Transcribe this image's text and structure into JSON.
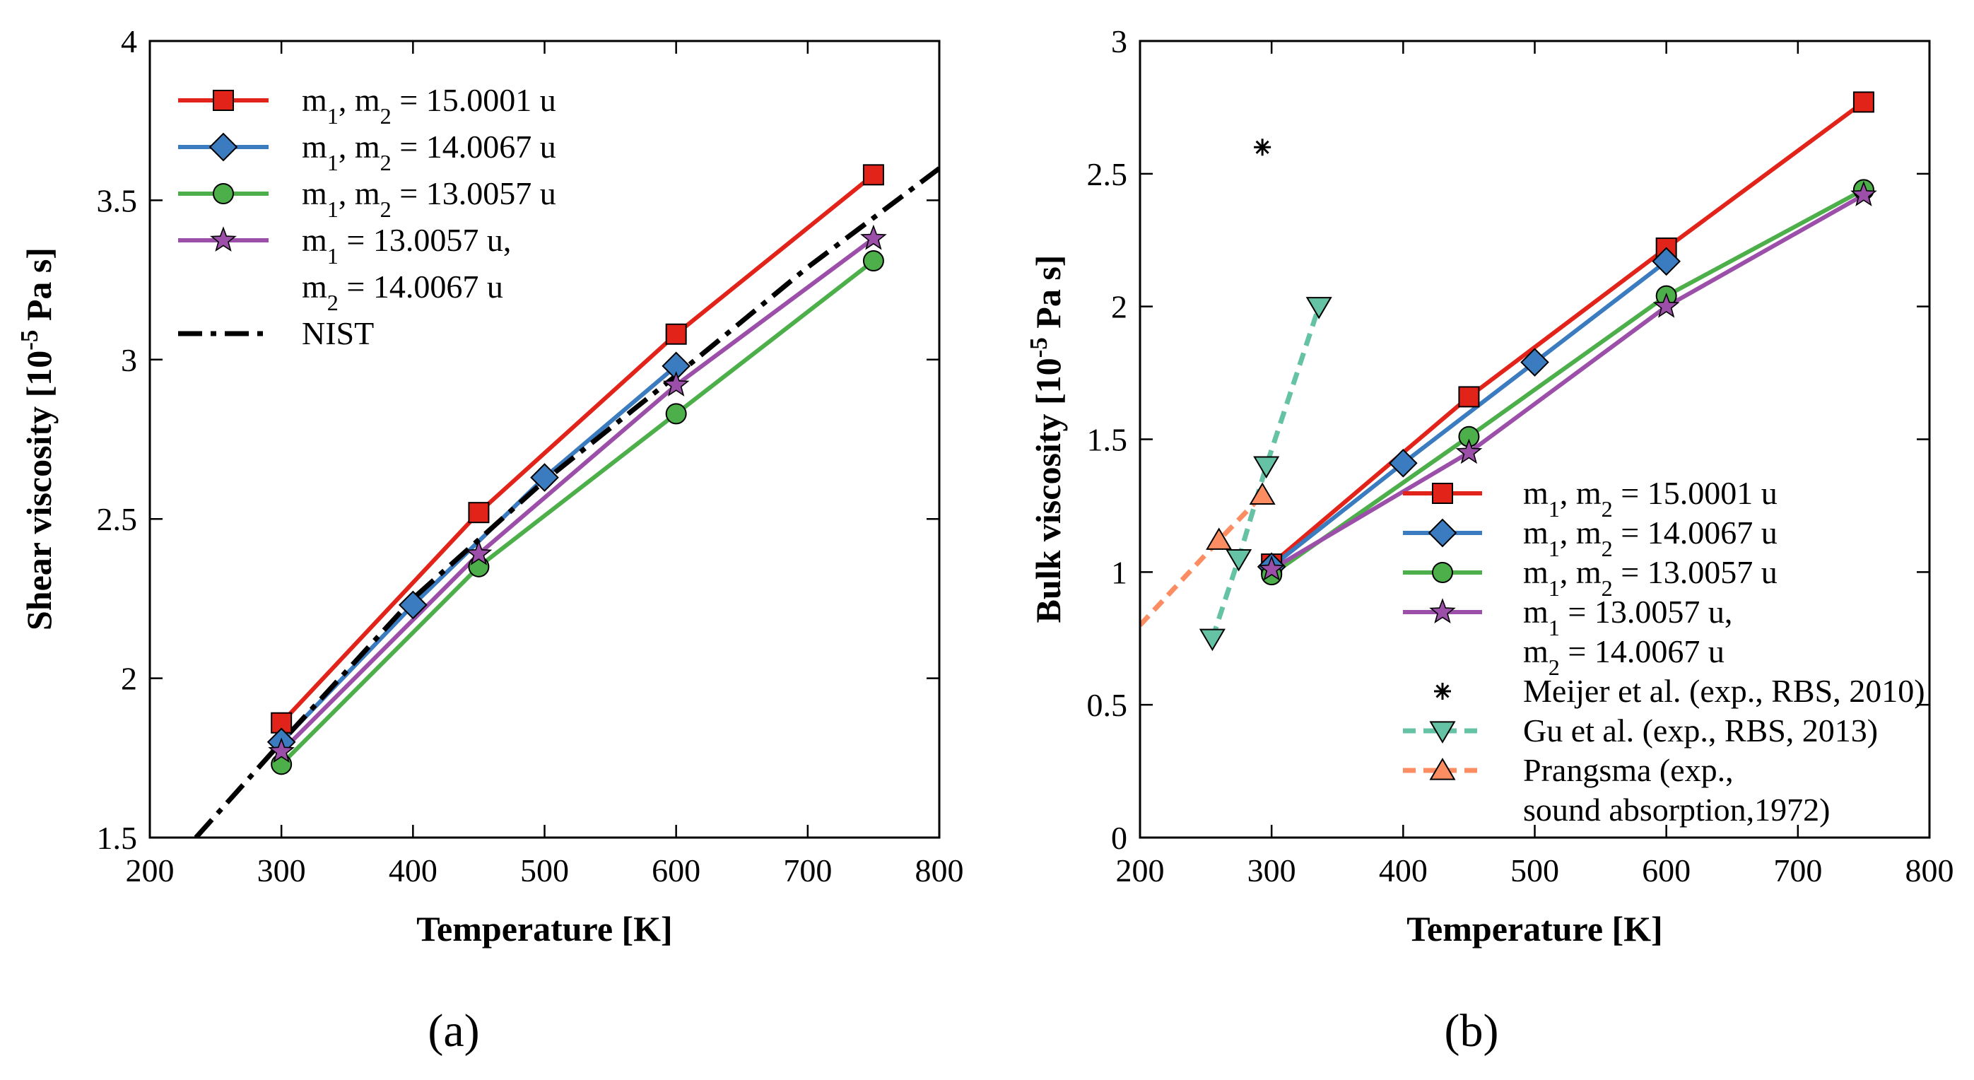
{
  "chart_data": [
    {
      "type": "line",
      "panel_label": "(a)",
      "xlabel": "Temperature [K]",
      "ylabel_parts": [
        "Shear viscosity [10",
        "-5",
        " Pa s]"
      ],
      "xlim": [
        200,
        800
      ],
      "ylim": [
        1.5,
        4
      ],
      "xticks": [
        200,
        300,
        400,
        500,
        600,
        700,
        800
      ],
      "yticks": [
        1.5,
        2,
        2.5,
        3,
        3.5,
        4
      ],
      "ytick_labels": [
        "1.5",
        "2",
        "2.5",
        "3",
        "3.5",
        "4"
      ],
      "grid": false,
      "legend_position": "top-left",
      "series": [
        {
          "name_parts": [
            "m",
            "1",
            ", m",
            "2",
            " = 15.0001 u"
          ],
          "color": "#e2231a",
          "marker": "square",
          "line": "solid",
          "x": [
            300,
            450,
            600,
            750
          ],
          "y": [
            1.86,
            2.52,
            3.08,
            3.58
          ]
        },
        {
          "name_parts": [
            "m",
            "1",
            ", m",
            "2",
            " = 14.0067 u"
          ],
          "color": "#3b7bbf",
          "marker": "diamond",
          "line": "solid",
          "x": [
            300,
            400,
            500,
            600
          ],
          "y": [
            1.8,
            2.23,
            2.63,
            2.98
          ]
        },
        {
          "name_parts": [
            "m",
            "1",
            ", m",
            "2",
            " = 13.0057 u"
          ],
          "color": "#4daf4a",
          "marker": "circle",
          "line": "solid",
          "x": [
            300,
            450,
            600,
            750
          ],
          "y": [
            1.73,
            2.35,
            2.83,
            3.31
          ]
        },
        {
          "name_parts": [
            "m",
            "1",
            " = 13.0057 u,"
          ],
          "name_line2_parts": [
            "m",
            "2",
            " = 14.0067 u"
          ],
          "color": "#9b4fa8",
          "marker": "star",
          "line": "solid",
          "x": [
            300,
            450,
            600,
            750
          ],
          "y": [
            1.77,
            2.39,
            2.92,
            3.38
          ]
        },
        {
          "name_parts": [
            "NIST"
          ],
          "color": "#000000",
          "marker": "none",
          "line": "dashdot",
          "x": [
            235,
            300,
            400,
            500,
            600,
            700,
            800
          ],
          "y": [
            1.5,
            1.8,
            2.25,
            2.62,
            2.95,
            3.29,
            3.6
          ]
        }
      ]
    },
    {
      "type": "line",
      "panel_label": "(b)",
      "xlabel": "Temperature [K]",
      "ylabel_parts": [
        "Bulk viscosity [10",
        "-5",
        " Pa s]"
      ],
      "xlim": [
        200,
        800
      ],
      "ylim": [
        0,
        3
      ],
      "xticks": [
        200,
        300,
        400,
        500,
        600,
        700,
        800
      ],
      "yticks": [
        0,
        0.5,
        1,
        1.5,
        2,
        2.5,
        3
      ],
      "ytick_labels": [
        "0",
        "0.5",
        "1",
        "1.5",
        "2",
        "2.5",
        "3"
      ],
      "grid": false,
      "legend_position": "bottom-right",
      "series": [
        {
          "name_parts": [
            "m",
            "1",
            ", m",
            "2",
            " = 15.0001 u"
          ],
          "color": "#e2231a",
          "marker": "square",
          "line": "solid",
          "x": [
            300,
            450,
            600,
            750
          ],
          "y": [
            1.03,
            1.66,
            2.22,
            2.77
          ]
        },
        {
          "name_parts": [
            "m",
            "1",
            ", m",
            "2",
            " = 14.0067 u"
          ],
          "color": "#3b7bbf",
          "marker": "diamond",
          "line": "solid",
          "x": [
            300,
            400,
            500,
            600
          ],
          "y": [
            1.02,
            1.41,
            1.79,
            2.17
          ]
        },
        {
          "name_parts": [
            "m",
            "1",
            ", m",
            "2",
            " = 13.0057 u"
          ],
          "color": "#4daf4a",
          "marker": "circle",
          "line": "solid",
          "x": [
            300,
            450,
            600,
            750
          ],
          "y": [
            0.99,
            1.51,
            2.04,
            2.44
          ]
        },
        {
          "name_parts": [
            "m",
            "1",
            " = 13.0057 u,"
          ],
          "name_line2_parts": [
            "m",
            "2",
            " = 14.0067 u"
          ],
          "color": "#9b4fa8",
          "marker": "star",
          "line": "solid",
          "x": [
            300,
            450,
            600,
            750
          ],
          "y": [
            1.01,
            1.45,
            2.0,
            2.42
          ]
        },
        {
          "name_parts": [
            "Meijer et al. (exp., RBS, 2010)"
          ],
          "color": "#000000",
          "marker": "asterisk",
          "line": "none",
          "x": [
            293
          ],
          "y": [
            2.6
          ]
        },
        {
          "name_parts": [
            "Gu et al. (exp., RBS, 2013)"
          ],
          "color": "#66c2a5",
          "marker": "triangle-down",
          "line": "dashed",
          "x": [
            255,
            275,
            296,
            336
          ],
          "y": [
            0.75,
            1.05,
            1.4,
            2.0
          ]
        },
        {
          "name_parts": [
            "Prangsma (exp.,"
          ],
          "name_line2_parts": [
            "sound absorption,1972)"
          ],
          "color": "#fc8d62",
          "marker": "triangle-up",
          "line": "dashed",
          "x": [
            200,
            260,
            293
          ],
          "y": [
            0.8,
            1.12,
            1.29
          ],
          "marker_x": [
            260,
            293
          ],
          "marker_y": [
            1.12,
            1.29
          ]
        }
      ]
    }
  ]
}
